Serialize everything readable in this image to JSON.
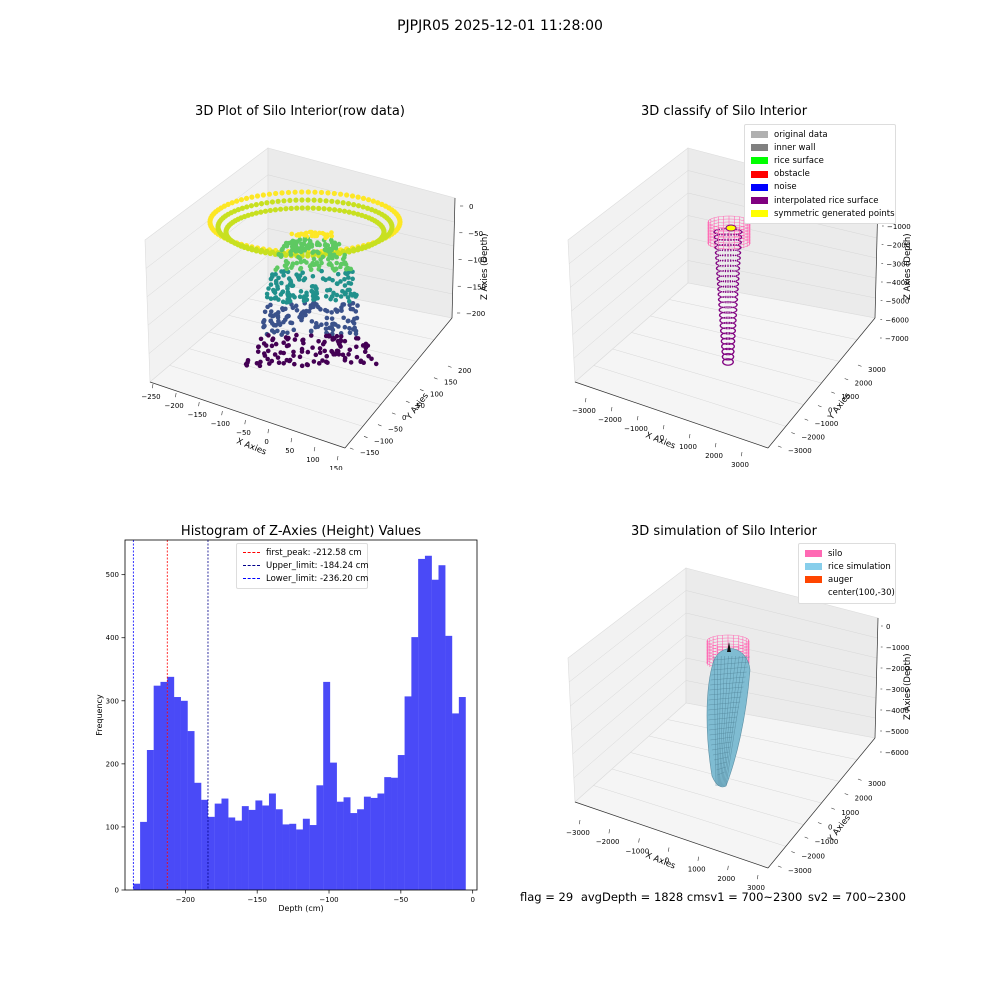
{
  "figure": {
    "suptitle": "PJPJR05 2025-12-01 11:28:00"
  },
  "panels": {
    "raw": {
      "title": "3D Plot of Silo Interior(row data)",
      "xlabel": "X Axies",
      "ylabel": "Y Axies",
      "zlabel": "Z Axies (Depth)",
      "xticks": [
        "−250",
        "−200",
        "−150",
        "−100",
        "−50",
        "0",
        "50",
        "100",
        "150"
      ],
      "yticks": [
        "−150",
        "−100",
        "−50",
        "0",
        "50",
        "100",
        "150",
        "200"
      ],
      "zticks": [
        "0",
        "−50",
        "−100",
        "−150",
        "−200"
      ],
      "colormap": "viridis"
    },
    "classify": {
      "title": "3D classify of Silo Interior",
      "xlabel": "X Axies",
      "ylabel": "Y Axies",
      "zlabel": "Z Axies (Depth)",
      "xticks": [
        "−3000",
        "−2000",
        "−1000",
        "0",
        "1000",
        "2000",
        "3000"
      ],
      "yticks": [
        "−3000",
        "−2000",
        "−1000",
        "0",
        "1000",
        "2000",
        "3000"
      ],
      "zticks": [
        "−1000",
        "−2000",
        "−3000",
        "−4000",
        "−5000",
        "−6000",
        "−7000"
      ],
      "legend": [
        {
          "label": "original data",
          "color": "#b0b0b0"
        },
        {
          "label": "inner wall",
          "color": "#808080"
        },
        {
          "label": "rice surface",
          "color": "#00ff00"
        },
        {
          "label": "obstacle",
          "color": "#ff0000"
        },
        {
          "label": "noise",
          "color": "#0000ff"
        },
        {
          "label": "interpolated rice surface",
          "color": "#800080"
        },
        {
          "label": "symmetric generated points",
          "color": "#ffff00"
        }
      ]
    },
    "simulation": {
      "title": "3D simulation of Silo Interior",
      "xlabel": "X Axies",
      "ylabel": "Y Axies",
      "zlabel": "Z Axies (Depth)",
      "xticks": [
        "−3000",
        "−2000",
        "−1000",
        "0",
        "1000",
        "2000",
        "3000"
      ],
      "yticks": [
        "−3000",
        "−2000",
        "−1000",
        "0",
        "1000",
        "2000",
        "3000"
      ],
      "zticks": [
        "0",
        "−1000",
        "−2000",
        "−3000",
        "−4000",
        "−5000",
        "−6000"
      ],
      "legend": [
        {
          "label": "silo",
          "color": "#ff69b4"
        },
        {
          "label": "rice simulation",
          "color": "#87ceeb"
        },
        {
          "label": "auger",
          "color": "#ff4500"
        },
        {
          "label": "center(100,-30)",
          "color": ""
        }
      ],
      "footer": {
        "flag": "flag = 29",
        "avg_depth": "avgDepth = 1828 cm",
        "sv1": "sv1 = 700~2300",
        "sv2": "sv2 = 700~2300"
      }
    }
  },
  "chart_data": [
    {
      "type": "bar",
      "title": "Histogram of Z-Axies (Height) Values",
      "xlabel": "Depth (cm)",
      "ylabel": "Frequency",
      "xlim": [
        -242,
        3
      ],
      "ylim": [
        0,
        555
      ],
      "xticks": [
        "−200",
        "−150",
        "−100",
        "−50",
        "0"
      ],
      "yticks": [
        "0",
        "100",
        "200",
        "300",
        "400",
        "500"
      ],
      "bar_color": "#4a4af7",
      "bins_start": -236.2,
      "bin_width": 4.72,
      "values": [
        10,
        108,
        222,
        324,
        330,
        338,
        306,
        300,
        252,
        170,
        143,
        116,
        137,
        145,
        115,
        110,
        133,
        127,
        142,
        134,
        153,
        128,
        104,
        105,
        96,
        113,
        103,
        166,
        330,
        202,
        140,
        147,
        122,
        128,
        148,
        146,
        153,
        179,
        178,
        214,
        307,
        401,
        525,
        530,
        492,
        515,
        403,
        280,
        306
      ],
      "vlines": [
        {
          "label": "first_peak: -212.58 cm",
          "x": -212.58,
          "color": "#ff0000"
        },
        {
          "label": "Upper_limit: -184.24 cm",
          "x": -184.24,
          "color": "#00008b"
        },
        {
          "label": "Lower_limit: -236.20 cm",
          "x": -236.2,
          "color": "#0000ff"
        }
      ],
      "legend_position": "top-center"
    }
  ]
}
